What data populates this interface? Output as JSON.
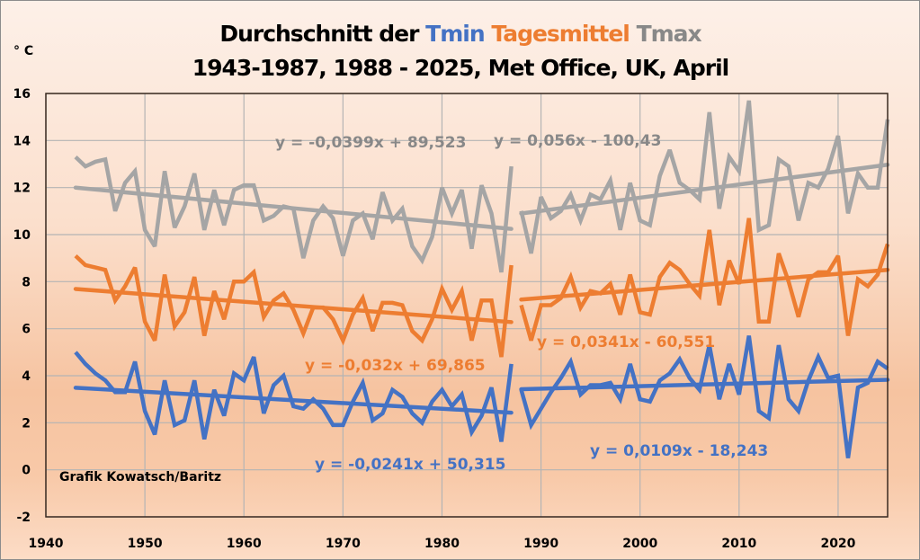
{
  "chart_data": {
    "type": "line",
    "title_line1": {
      "prefix": "Durchschnitt der ",
      "tmin": "Tmin",
      "mean": "Tagesmittel",
      "tmax": "Tmax"
    },
    "title_line2": "1943-1987, 1988 - 2025, Met Office, UK, April",
    "ylabel": "° C",
    "xlim": [
      1940,
      2025
    ],
    "ylim": [
      -2,
      16
    ],
    "x_ticks": [
      1940,
      1950,
      1960,
      1970,
      1980,
      1990,
      2000,
      2010,
      2020
    ],
    "y_ticks": [
      -2,
      0,
      2,
      4,
      6,
      8,
      10,
      12,
      14,
      16
    ],
    "x_tick_labels": [
      "1940",
      "1950",
      "1960",
      "1970",
      "1980",
      "1990",
      "2000",
      "2010",
      "2020"
    ],
    "y_tick_labels": [
      "-2",
      "0",
      "2",
      "4",
      "6",
      "8",
      "10",
      "12",
      "14",
      "16"
    ],
    "grid": true,
    "credit": "Grafik Kowatsch/Baritz",
    "colors": {
      "tmin": "#4472c4",
      "mean": "#ed7d31",
      "tmax": "#a5a5a5",
      "gridline": "#b4b4b4"
    },
    "series": [
      {
        "name": "Tmax",
        "color_key": "tmax",
        "segments": [
          {
            "x_start": 1943,
            "values": [
              13.3,
              12.9,
              13.1,
              13.2,
              11.0,
              12.2,
              12.7,
              10.2,
              9.5,
              12.7,
              10.3,
              11.2,
              12.6,
              10.2,
              11.9,
              10.4,
              11.9,
              12.1,
              12.1,
              10.6,
              10.8,
              11.2,
              11.1,
              9.0,
              10.6,
              11.2,
              10.7,
              9.1,
              10.6,
              10.9,
              9.8,
              11.8,
              10.6,
              11.1,
              9.5,
              8.9,
              9.9,
              12.0,
              10.9,
              11.9,
              9.4,
              12.1,
              10.9,
              8.4,
              12.9
            ],
            "trend": {
              "slope": -0.0399,
              "intercept": 89.523,
              "label": "y = -0,0399x + 89,523"
            }
          },
          {
            "x_start": 1988,
            "values": [
              11.0,
              9.2,
              11.6,
              10.7,
              11.0,
              11.7,
              10.6,
              11.7,
              11.5,
              12.3,
              10.2,
              12.2,
              10.6,
              10.4,
              12.5,
              13.6,
              12.2,
              11.9,
              11.5,
              15.2,
              11.1,
              13.3,
              12.7,
              15.7,
              10.2,
              10.4,
              13.2,
              12.9,
              10.6,
              12.2,
              12.0,
              12.8,
              14.2,
              10.9,
              12.6,
              12.0,
              12.0,
              14.9
            ],
            "trend": {
              "slope": 0.056,
              "intercept": -100.43,
              "label": "y = 0,056x - 100,43"
            }
          }
        ]
      },
      {
        "name": "Tagesmittel",
        "color_key": "mean",
        "segments": [
          {
            "x_start": 1943,
            "values": [
              9.1,
              8.7,
              8.6,
              8.5,
              7.2,
              7.8,
              8.6,
              6.3,
              5.5,
              8.3,
              6.1,
              6.7,
              8.2,
              5.7,
              7.6,
              6.4,
              8.0,
              8.0,
              8.4,
              6.5,
              7.2,
              7.5,
              6.8,
              5.8,
              6.9,
              6.9,
              6.4,
              5.5,
              6.6,
              7.3,
              5.9,
              7.1,
              7.1,
              7.0,
              5.9,
              5.5,
              6.4,
              7.7,
              6.8,
              7.6,
              5.5,
              7.2,
              7.2,
              4.8,
              8.7
            ],
            "trend": {
              "slope": -0.032,
              "intercept": 69.865,
              "label": "y = -0,032x + 69,865"
            }
          },
          {
            "x_start": 1988,
            "values": [
              7.0,
              5.5,
              7.0,
              7.0,
              7.3,
              8.2,
              6.9,
              7.6,
              7.5,
              7.9,
              6.6,
              8.3,
              6.7,
              6.6,
              8.2,
              8.8,
              8.5,
              7.9,
              7.4,
              10.2,
              7.0,
              8.9,
              7.9,
              10.7,
              6.3,
              6.3,
              9.2,
              8.0,
              6.5,
              8.1,
              8.4,
              8.4,
              9.1,
              5.7,
              8.1,
              7.8,
              8.3,
              9.6
            ],
            "trend": {
              "slope": 0.0341,
              "intercept": -60.551,
              "label": "y = 0,0341x - 60,551"
            }
          }
        ]
      },
      {
        "name": "Tmin",
        "color_key": "tmin",
        "segments": [
          {
            "x_start": 1943,
            "values": [
              5.0,
              4.5,
              4.1,
              3.8,
              3.3,
              3.3,
              4.6,
              2.5,
              1.5,
              3.8,
              1.9,
              2.1,
              3.8,
              1.3,
              3.4,
              2.3,
              4.1,
              3.8,
              4.8,
              2.4,
              3.6,
              4.0,
              2.7,
              2.6,
              3.0,
              2.6,
              1.9,
              1.9,
              2.9,
              3.7,
              2.1,
              2.4,
              3.4,
              3.1,
              2.4,
              2.0,
              2.9,
              3.4,
              2.7,
              3.2,
              1.6,
              2.3,
              3.5,
              1.2,
              4.5
            ],
            "trend": {
              "slope": -0.0241,
              "intercept": 50.315,
              "label": "y = -0,0241x + 50,315"
            }
          },
          {
            "x_start": 1988,
            "values": [
              3.4,
              1.9,
              2.6,
              3.3,
              3.9,
              4.6,
              3.2,
              3.6,
              3.6,
              3.7,
              3.0,
              4.5,
              3.0,
              2.9,
              3.8,
              4.1,
              4.7,
              3.9,
              3.4,
              5.3,
              3.0,
              4.5,
              3.2,
              5.7,
              2.5,
              2.2,
              5.3,
              3.0,
              2.5,
              3.8,
              4.8,
              3.9,
              4.0,
              0.5,
              3.5,
              3.7,
              4.6,
              4.3
            ],
            "trend": {
              "slope": 0.0109,
              "intercept": -18.243,
              "label": "y = 0,0109x - 18,243"
            }
          }
        ]
      }
    ]
  }
}
